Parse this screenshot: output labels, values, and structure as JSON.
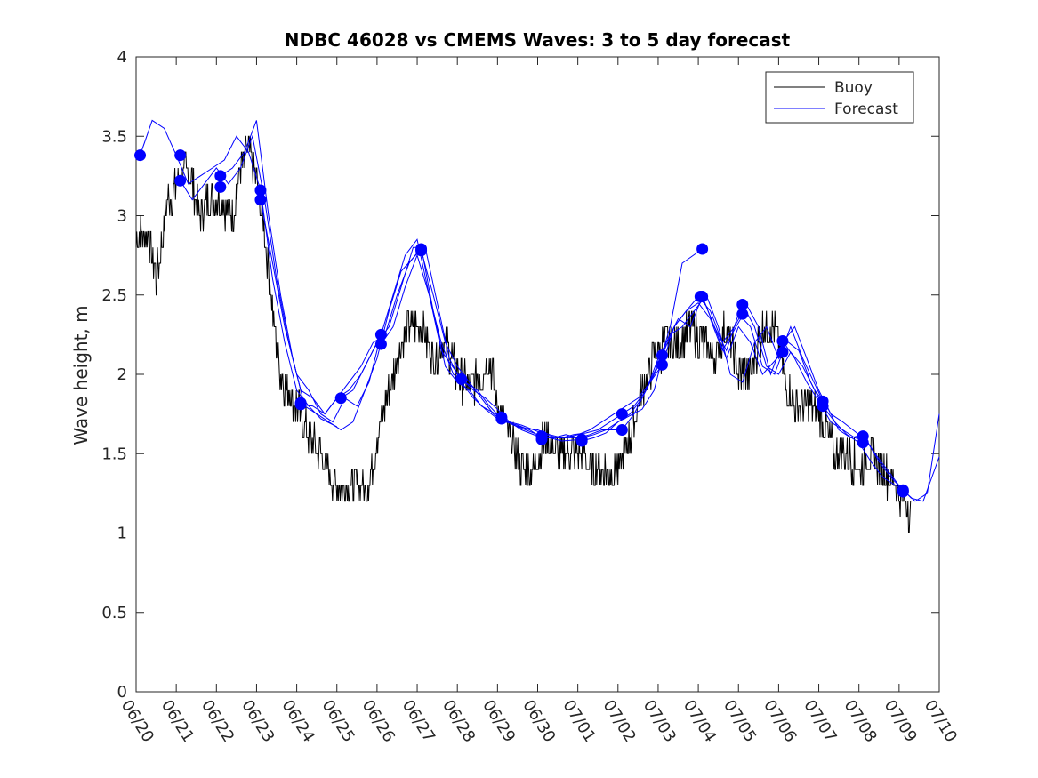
{
  "chart_data": {
    "type": "line",
    "title": "NDBC 46028 vs CMEMS Waves: 3 to 5 day forecast",
    "xlabel": "",
    "ylabel": "Wave height, m",
    "ylim": [
      0,
      4
    ],
    "yticks": [
      "0",
      "0.5",
      "1",
      "1.5",
      "2",
      "2.5",
      "3",
      "3.5",
      "4"
    ],
    "xlim_days": [
      0,
      20
    ],
    "xticks": [
      "06/20",
      "06/21",
      "06/22",
      "06/23",
      "06/24",
      "06/25",
      "06/26",
      "06/27",
      "06/28",
      "06/29",
      "06/30",
      "07/01",
      "07/02",
      "07/03",
      "07/04",
      "07/05",
      "07/06",
      "07/07",
      "07/08",
      "07/09",
      "07/10"
    ],
    "legend": {
      "position": "top-right",
      "entries": [
        {
          "label": "Buoy",
          "color": "#000000"
        },
        {
          "label": "Forecast",
          "color": "#0000ff"
        }
      ]
    },
    "series": [
      {
        "name": "Buoy",
        "color": "#000000",
        "style": "noisy-line",
        "x": [
          0,
          0.3,
          0.5,
          0.8,
          1.0,
          1.3,
          1.6,
          1.8,
          2.1,
          2.4,
          2.6,
          2.8,
          3.0,
          3.2,
          3.4,
          3.6,
          3.8,
          4.0,
          4.3,
          4.6,
          4.9,
          5.2,
          5.5,
          5.8,
          6.0,
          6.3,
          6.6,
          6.8,
          7.1,
          7.4,
          7.7,
          8.0,
          8.3,
          8.6,
          8.8,
          9.0,
          9.3,
          9.6,
          9.9,
          10.2,
          10.5,
          10.8,
          11.1,
          11.4,
          11.7,
          12.0,
          12.3,
          12.6,
          12.9,
          13.2,
          13.5,
          13.8,
          14.1,
          14.4,
          14.7,
          15.0,
          15.3,
          15.6,
          15.9,
          16.2,
          16.5,
          16.8,
          17.1,
          17.4,
          17.7,
          18.0,
          18.3,
          18.6,
          18.9,
          19.1,
          19.3
        ],
        "y": [
          2.85,
          2.9,
          2.6,
          3.1,
          3.2,
          3.3,
          3.0,
          3.1,
          3.1,
          3.0,
          3.3,
          3.4,
          3.2,
          2.9,
          2.4,
          2.0,
          1.9,
          1.8,
          1.6,
          1.5,
          1.3,
          1.3,
          1.3,
          1.3,
          1.6,
          1.9,
          2.2,
          2.3,
          2.3,
          2.1,
          2.2,
          2.0,
          1.9,
          2.0,
          2.1,
          1.8,
          1.6,
          1.4,
          1.4,
          1.6,
          1.5,
          1.5,
          1.5,
          1.4,
          1.4,
          1.4,
          1.6,
          1.9,
          2.1,
          2.2,
          2.2,
          2.3,
          2.2,
          2.1,
          2.3,
          2.0,
          2.0,
          2.3,
          2.3,
          1.9,
          1.8,
          1.8,
          1.7,
          1.5,
          1.5,
          1.4,
          1.5,
          1.4,
          1.3,
          1.2,
          1.15
        ],
        "noise_amplitude": 0.12
      }
    ],
    "forecast_runs": [
      {
        "x": [
          0.1,
          0.4,
          0.7,
          1.0,
          1.3,
          1.6,
          1.9,
          2.2,
          2.5,
          2.8,
          3.1,
          3.4,
          3.7,
          4.0,
          4.3,
          4.6,
          5.0
        ],
        "y": [
          3.38,
          3.6,
          3.55,
          3.38,
          3.2,
          3.25,
          3.3,
          3.35,
          3.5,
          3.4,
          3.16,
          2.6,
          2.2,
          1.9,
          1.8,
          1.72,
          1.67
        ]
      },
      {
        "x": [
          1.1,
          1.4,
          1.7,
          2.0,
          2.3,
          2.6,
          2.9,
          3.2,
          3.5,
          3.8,
          4.1,
          4.4,
          4.7,
          5.0,
          5.3,
          5.6,
          6.1
        ],
        "y": [
          3.22,
          3.1,
          3.2,
          3.3,
          3.2,
          3.3,
          3.5,
          3.1,
          2.6,
          2.2,
          1.9,
          1.85,
          1.75,
          1.85,
          1.9,
          2.0,
          2.25
        ]
      },
      {
        "x": [
          2.1,
          2.4,
          2.7,
          3.0,
          3.3,
          3.6,
          3.9,
          4.2,
          4.5,
          4.8,
          5.1,
          5.4,
          5.7,
          6.0,
          6.3,
          6.6,
          7.1
        ],
        "y": [
          3.25,
          3.3,
          3.4,
          3.6,
          3.0,
          2.5,
          2.1,
          1.8,
          1.75,
          1.7,
          1.65,
          1.7,
          1.9,
          2.1,
          2.4,
          2.65,
          2.79
        ]
      },
      {
        "x": [
          3.1,
          3.4,
          3.7,
          4.0,
          4.3,
          4.6,
          4.9,
          5.2,
          5.5,
          5.8,
          6.1,
          6.4,
          6.7,
          7.0,
          7.3,
          7.6,
          8.1
        ],
        "y": [
          3.1,
          2.7,
          2.3,
          2.0,
          1.9,
          1.75,
          1.7,
          1.85,
          1.8,
          1.95,
          2.25,
          2.5,
          2.75,
          2.85,
          2.5,
          2.15,
          1.97
        ]
      },
      {
        "x": [
          4.1,
          4.4,
          4.7,
          5.0,
          5.3,
          5.6,
          5.9,
          6.2,
          6.5,
          6.8,
          7.1,
          7.4,
          7.7,
          8.0,
          8.3,
          8.6,
          9.1
        ],
        "y": [
          1.81,
          1.8,
          1.75,
          1.85,
          1.95,
          2.05,
          2.2,
          2.25,
          2.5,
          2.7,
          2.8,
          2.4,
          2.05,
          1.95,
          1.9,
          1.8,
          1.73
        ]
      },
      {
        "x": [
          5.1,
          5.4,
          5.7,
          6.0,
          6.3,
          6.6,
          6.9,
          7.2,
          7.5,
          7.8,
          8.1,
          8.4,
          8.7,
          9.0,
          9.3,
          9.6,
          10.1
        ],
        "y": [
          1.85,
          1.9,
          2.05,
          2.2,
          2.3,
          2.55,
          2.8,
          2.8,
          2.45,
          2.1,
          1.95,
          1.85,
          1.78,
          1.72,
          1.7,
          1.65,
          1.6
        ]
      },
      {
        "x": [
          6.1,
          6.4,
          6.7,
          7.0,
          7.3,
          7.6,
          7.9,
          8.2,
          8.5,
          8.8,
          9.1,
          9.4,
          9.7,
          10.0,
          10.3,
          10.6,
          11.1
        ],
        "y": [
          2.19,
          2.3,
          2.55,
          2.75,
          2.5,
          2.2,
          2.0,
          1.95,
          1.9,
          1.8,
          1.72,
          1.68,
          1.65,
          1.62,
          1.6,
          1.58,
          1.59
        ]
      },
      {
        "x": [
          7.1,
          7.4,
          7.7,
          8.0,
          8.3,
          8.6,
          8.9,
          9.2,
          9.5,
          9.8,
          10.1,
          10.4,
          10.7,
          11.0,
          11.3,
          11.6,
          12.1
        ],
        "y": [
          2.78,
          2.5,
          2.2,
          2.05,
          1.95,
          1.85,
          1.75,
          1.7,
          1.68,
          1.65,
          1.6,
          1.6,
          1.62,
          1.6,
          1.62,
          1.65,
          1.65
        ]
      },
      {
        "x": [
          8.1,
          8.4,
          8.7,
          9.0,
          9.3,
          9.6,
          9.9,
          10.2,
          10.5,
          10.8,
          11.1,
          11.4,
          11.7,
          12.0,
          12.3,
          12.6,
          13.1
        ],
        "y": [
          1.97,
          1.9,
          1.85,
          1.78,
          1.7,
          1.68,
          1.65,
          1.62,
          1.6,
          1.6,
          1.6,
          1.62,
          1.65,
          1.7,
          1.75,
          1.85,
          2.12
        ]
      },
      {
        "x": [
          9.1,
          9.4,
          9.7,
          10.0,
          10.3,
          10.6,
          10.9,
          11.2,
          11.5,
          11.8,
          12.1,
          12.4,
          12.7,
          13.0,
          13.3,
          13.6,
          14.1
        ],
        "y": [
          1.72,
          1.68,
          1.66,
          1.65,
          1.62,
          1.6,
          1.62,
          1.63,
          1.65,
          1.7,
          1.75,
          1.8,
          1.9,
          2.05,
          2.3,
          2.7,
          2.79
        ]
      },
      {
        "x": [
          10.1,
          10.4,
          10.7,
          11.0,
          11.3,
          11.6,
          11.9,
          12.2,
          12.5,
          12.8,
          13.1,
          13.4,
          13.7,
          14.0,
          14.3,
          14.6,
          15.1
        ],
        "y": [
          1.61,
          1.6,
          1.6,
          1.62,
          1.65,
          1.7,
          1.75,
          1.8,
          1.85,
          1.95,
          2.06,
          2.3,
          2.4,
          2.45,
          2.35,
          2.15,
          2.37
        ]
      },
      {
        "x": [
          11.1,
          11.4,
          11.7,
          12.0,
          12.3,
          12.6,
          12.9,
          13.2,
          13.5,
          13.8,
          14.1,
          14.4,
          14.7,
          15.0,
          15.3,
          15.6,
          16.1
        ],
        "y": [
          1.58,
          1.6,
          1.63,
          1.7,
          1.74,
          1.78,
          1.9,
          2.2,
          2.35,
          2.3,
          2.49,
          2.3,
          2.1,
          2.3,
          2.2,
          2.0,
          2.14
        ]
      },
      {
        "x": [
          12.1,
          12.4,
          12.7,
          13.0,
          13.3,
          13.6,
          13.9,
          14.2,
          14.5,
          14.8,
          15.1,
          15.4,
          15.7,
          16.0,
          16.3,
          16.6,
          17.1
        ],
        "y": [
          1.65,
          1.75,
          1.9,
          2.1,
          2.25,
          2.3,
          2.4,
          2.5,
          2.3,
          2.0,
          1.95,
          2.2,
          2.3,
          2.1,
          2.3,
          2.1,
          1.83
        ]
      },
      {
        "x": [
          13.1,
          13.4,
          13.7,
          14.0,
          14.3,
          14.6,
          14.9,
          15.2,
          15.5,
          15.8,
          16.1,
          16.4,
          16.7,
          17.0,
          17.3,
          17.6,
          18.1
        ],
        "y": [
          2.12,
          2.3,
          2.4,
          2.49,
          2.4,
          2.2,
          2.3,
          2.44,
          2.3,
          2.0,
          2.2,
          2.3,
          2.1,
          1.9,
          1.75,
          1.7,
          1.6
        ]
      },
      {
        "x": [
          14.1,
          14.4,
          14.7,
          15.0,
          15.3,
          15.6,
          15.9,
          16.2,
          16.5,
          16.8,
          17.1,
          17.4,
          17.7,
          18.0,
          18.3,
          18.6,
          19.1
        ],
        "y": [
          2.49,
          2.3,
          2.15,
          2.38,
          2.3,
          2.05,
          2.0,
          2.21,
          2.15,
          1.95,
          1.8,
          1.7,
          1.62,
          1.57,
          1.45,
          1.35,
          1.27
        ]
      },
      {
        "x": [
          15.1,
          15.4,
          15.7,
          16.0,
          16.3,
          16.6,
          16.9,
          17.2,
          17.5,
          17.8,
          18.1,
          18.4,
          18.7,
          19.0,
          19.3,
          19.6,
          20.0
        ],
        "y": [
          2.44,
          2.3,
          2.05,
          2.0,
          2.14,
          2.05,
          1.9,
          1.8,
          1.65,
          1.6,
          1.62,
          1.5,
          1.4,
          1.3,
          1.22,
          1.2,
          1.48
        ]
      },
      {
        "x": [
          16.1,
          16.4,
          16.7,
          17.0,
          17.3,
          17.6,
          17.9,
          18.2,
          18.5,
          18.8,
          19.1,
          19.4,
          19.7,
          20.0
        ],
        "y": [
          2.21,
          2.1,
          1.95,
          1.83,
          1.7,
          1.65,
          1.6,
          1.58,
          1.45,
          1.35,
          1.27,
          1.2,
          1.25,
          1.75
        ]
      }
    ],
    "forecast_markers": [
      {
        "x": 0.1,
        "y": 3.38
      },
      {
        "x": 1.1,
        "y": 3.38
      },
      {
        "x": 1.1,
        "y": 3.22
      },
      {
        "x": 2.1,
        "y": 3.25
      },
      {
        "x": 2.1,
        "y": 3.18
      },
      {
        "x": 3.1,
        "y": 3.16
      },
      {
        "x": 3.1,
        "y": 3.1
      },
      {
        "x": 4.1,
        "y": 1.82
      },
      {
        "x": 4.1,
        "y": 1.81
      },
      {
        "x": 5.1,
        "y": 1.85
      },
      {
        "x": 6.1,
        "y": 2.25
      },
      {
        "x": 6.1,
        "y": 2.19
      },
      {
        "x": 7.1,
        "y": 2.79
      },
      {
        "x": 7.1,
        "y": 2.78
      },
      {
        "x": 8.1,
        "y": 1.97
      },
      {
        "x": 9.1,
        "y": 1.73
      },
      {
        "x": 9.1,
        "y": 1.72
      },
      {
        "x": 10.1,
        "y": 1.61
      },
      {
        "x": 10.1,
        "y": 1.59
      },
      {
        "x": 11.1,
        "y": 1.59
      },
      {
        "x": 11.1,
        "y": 1.58
      },
      {
        "x": 12.1,
        "y": 1.75
      },
      {
        "x": 12.1,
        "y": 1.65
      },
      {
        "x": 13.1,
        "y": 2.12
      },
      {
        "x": 13.1,
        "y": 2.06
      },
      {
        "x": 14.1,
        "y": 2.79
      },
      {
        "x": 14.1,
        "y": 2.49
      },
      {
        "x": 14.05,
        "y": 2.49
      },
      {
        "x": 15.1,
        "y": 2.44
      },
      {
        "x": 15.1,
        "y": 2.38
      },
      {
        "x": 16.1,
        "y": 2.21
      },
      {
        "x": 16.1,
        "y": 2.14
      },
      {
        "x": 17.1,
        "y": 1.83
      },
      {
        "x": 17.1,
        "y": 1.8
      },
      {
        "x": 18.1,
        "y": 1.61
      },
      {
        "x": 18.1,
        "y": 1.57
      },
      {
        "x": 19.1,
        "y": 1.27
      },
      {
        "x": 19.1,
        "y": 1.26
      }
    ],
    "grid": false
  }
}
